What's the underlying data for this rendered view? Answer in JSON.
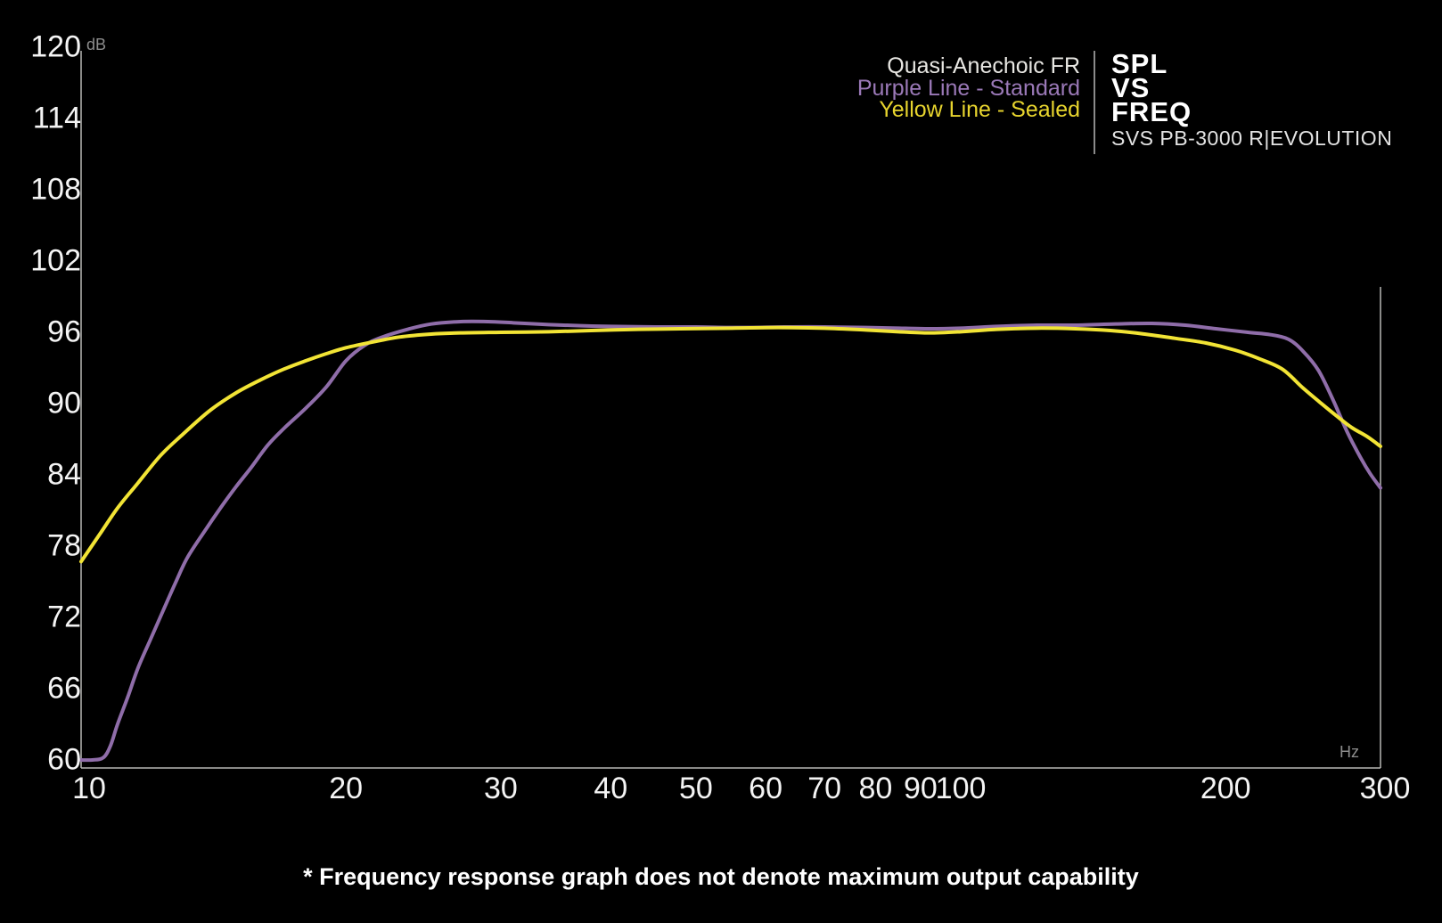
{
  "legend": {
    "line1": "Quasi-Anechoic FR",
    "line2": "Purple Line - Standard",
    "line3": "Yellow Line - Sealed"
  },
  "title": {
    "word1": "SPL",
    "word2": "VS",
    "word3": "FREQ",
    "subtitle": "SVS PB-3000 R|EVOLUTION"
  },
  "footnote": "* Frequency response graph does not denote maximum output capability",
  "axis_units": {
    "y": "dB",
    "x": "Hz"
  },
  "colors": {
    "background": "#000000",
    "axis": "#b8b8b6",
    "purple_line": "#8f6da9",
    "yellow_line": "#f2e435",
    "tick_text": "#f4f4f4",
    "legend_white": "#e8e7e3",
    "legend_purple": "#9b79b8",
    "legend_yellow": "#e7d42e"
  },
  "chart_data": {
    "type": "line",
    "title": "SPL VS FREQ — SVS PB-3000 R|EVOLUTION, Quasi-Anechoic FR",
    "x_scale": "log",
    "xlabel": "Hz",
    "ylabel": "dB",
    "xlim": [
      10,
      300
    ],
    "ylim": [
      60,
      120
    ],
    "x_ticks": [
      10,
      20,
      30,
      40,
      50,
      60,
      70,
      80,
      90,
      100,
      200,
      300
    ],
    "y_ticks": [
      120,
      114,
      108,
      102,
      96,
      90,
      84,
      78,
      72,
      66,
      60
    ],
    "grid": false,
    "legend_position": "top-right",
    "series": [
      {
        "name": "Standard (Purple Line)",
        "color": "#8f6da9",
        "points": [
          [
            10,
            60
          ],
          [
            10.3,
            60
          ],
          [
            10.6,
            60.2
          ],
          [
            10.8,
            61.2
          ],
          [
            11,
            63
          ],
          [
            11.3,
            65.3
          ],
          [
            11.6,
            67.7
          ],
          [
            12,
            70.2
          ],
          [
            12.4,
            72.6
          ],
          [
            12.8,
            74.9
          ],
          [
            13.2,
            77
          ],
          [
            13.8,
            79.2
          ],
          [
            14.4,
            81.2
          ],
          [
            15,
            83
          ],
          [
            15.6,
            84.6
          ],
          [
            16.3,
            86.5
          ],
          [
            17,
            87.9
          ],
          [
            18,
            89.6
          ],
          [
            19,
            91.4
          ],
          [
            20,
            93.6
          ],
          [
            21,
            94.9
          ],
          [
            22,
            95.6
          ],
          [
            23.5,
            96.25
          ],
          [
            25,
            96.7
          ],
          [
            27,
            96.9
          ],
          [
            29,
            96.9
          ],
          [
            31,
            96.8
          ],
          [
            34,
            96.65
          ],
          [
            37,
            96.55
          ],
          [
            40,
            96.5
          ],
          [
            45,
            96.45
          ],
          [
            50,
            96.45
          ],
          [
            56,
            96.4
          ],
          [
            63,
            96.45
          ],
          [
            70,
            96.45
          ],
          [
            78,
            96.4
          ],
          [
            85,
            96.35
          ],
          [
            92,
            96.3
          ],
          [
            100,
            96.35
          ],
          [
            110,
            96.5
          ],
          [
            122,
            96.6
          ],
          [
            135,
            96.6
          ],
          [
            150,
            96.7
          ],
          [
            165,
            96.75
          ],
          [
            180,
            96.6
          ],
          [
            195,
            96.3
          ],
          [
            212,
            96
          ],
          [
            225,
            95.8
          ],
          [
            236,
            95.4
          ],
          [
            245,
            94.4
          ],
          [
            255,
            92.8
          ],
          [
            265,
            90.3
          ],
          [
            275,
            87.6
          ],
          [
            285,
            85.4
          ],
          [
            292,
            84.1
          ],
          [
            300,
            82.9
          ]
        ]
      },
      {
        "name": "Sealed (Yellow Line)",
        "color": "#f2e435",
        "points": [
          [
            10,
            76.7
          ],
          [
            10.5,
            79
          ],
          [
            11,
            81.2
          ],
          [
            11.6,
            83.3
          ],
          [
            12.3,
            85.6
          ],
          [
            13,
            87.3
          ],
          [
            14,
            89.4
          ],
          [
            15,
            90.9
          ],
          [
            16,
            92
          ],
          [
            17,
            92.9
          ],
          [
            18,
            93.6
          ],
          [
            19,
            94.2
          ],
          [
            20,
            94.7
          ],
          [
            21.5,
            95.2
          ],
          [
            23,
            95.6
          ],
          [
            25,
            95.85
          ],
          [
            27,
            95.95
          ],
          [
            30,
            96
          ],
          [
            34,
            96.05
          ],
          [
            38,
            96.15
          ],
          [
            43,
            96.25
          ],
          [
            48,
            96.3
          ],
          [
            55,
            96.35
          ],
          [
            62,
            96.4
          ],
          [
            70,
            96.35
          ],
          [
            78,
            96.2
          ],
          [
            85,
            96.05
          ],
          [
            92,
            95.95
          ],
          [
            100,
            96.05
          ],
          [
            110,
            96.25
          ],
          [
            122,
            96.35
          ],
          [
            135,
            96.3
          ],
          [
            148,
            96.15
          ],
          [
            160,
            95.9
          ],
          [
            175,
            95.5
          ],
          [
            190,
            95.1
          ],
          [
            205,
            94.5
          ],
          [
            218,
            93.8
          ],
          [
            232,
            92.9
          ],
          [
            245,
            91.3
          ],
          [
            258,
            89.9
          ],
          [
            267,
            89.0
          ],
          [
            278,
            88.0
          ],
          [
            290,
            87.2
          ],
          [
            300,
            86.4
          ]
        ]
      }
    ]
  }
}
